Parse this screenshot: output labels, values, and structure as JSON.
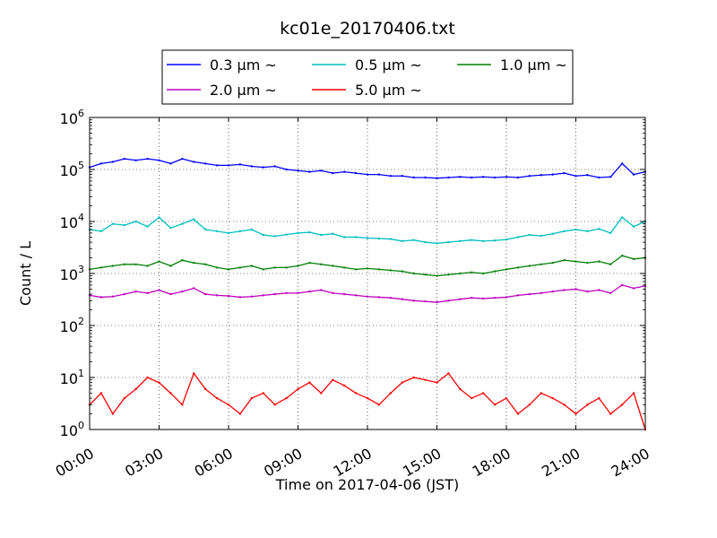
{
  "chart_data": {
    "type": "line",
    "title": "kc01e_20170406.txt",
    "xlabel": "Time on 2017-04-06 (JST)",
    "ylabel": "Count / L",
    "yscale": "log",
    "ylim": [
      1,
      1000000
    ],
    "xlim": [
      "00:00",
      "24:00"
    ],
    "grid": true,
    "legend_position": "top-center",
    "x_ticks": [
      "00:00",
      "03:00",
      "06:00",
      "09:00",
      "12:00",
      "15:00",
      "18:00",
      "21:00",
      "24:00"
    ],
    "y_ticks": [
      "10^0",
      "10^1",
      "10^2",
      "10^3",
      "10^4",
      "10^5",
      "10^6"
    ],
    "x": [
      "00:00",
      "00:30",
      "01:00",
      "01:30",
      "02:00",
      "02:30",
      "03:00",
      "03:30",
      "04:00",
      "04:30",
      "05:00",
      "05:30",
      "06:00",
      "06:30",
      "07:00",
      "07:30",
      "08:00",
      "08:30",
      "09:00",
      "09:30",
      "10:00",
      "10:30",
      "11:00",
      "11:30",
      "12:00",
      "12:30",
      "13:00",
      "13:30",
      "14:00",
      "14:30",
      "15:00",
      "15:30",
      "16:00",
      "16:30",
      "17:00",
      "17:30",
      "18:00",
      "18:30",
      "19:00",
      "19:30",
      "20:00",
      "20:30",
      "21:00",
      "21:30",
      "22:00",
      "22:30",
      "23:00",
      "23:30",
      "24:00"
    ],
    "series": [
      {
        "name": "0.3 μm ~",
        "color": "#0000ff",
        "values": [
          110000,
          130000,
          140000,
          160000,
          150000,
          160000,
          150000,
          130000,
          160000,
          140000,
          130000,
          120000,
          120000,
          125000,
          115000,
          110000,
          115000,
          100000,
          95000,
          90000,
          95000,
          85000,
          90000,
          85000,
          80000,
          80000,
          75000,
          75000,
          70000,
          70000,
          68000,
          70000,
          72000,
          70000,
          72000,
          70000,
          72000,
          70000,
          75000,
          78000,
          80000,
          85000,
          75000,
          78000,
          70000,
          72000,
          130000,
          80000,
          90000
        ]
      },
      {
        "name": "0.5 μm ~",
        "color": "#00bfbf",
        "values": [
          7000,
          6500,
          9000,
          8500,
          10000,
          8000,
          12000,
          7500,
          9000,
          11000,
          7000,
          6500,
          6000,
          6500,
          7000,
          5500,
          5200,
          5600,
          6000,
          6200,
          5500,
          5800,
          5000,
          5000,
          4800,
          4700,
          4600,
          4200,
          4400,
          4000,
          3800,
          4000,
          4200,
          4400,
          4200,
          4300,
          4500,
          5000,
          5500,
          5300,
          5800,
          6500,
          7000,
          6500,
          7200,
          6000,
          12000,
          8000,
          10000
        ]
      },
      {
        "name": "1.0 μm ~",
        "color": "#008000",
        "values": [
          1200,
          1300,
          1400,
          1500,
          1500,
          1400,
          1700,
          1400,
          1800,
          1600,
          1500,
          1300,
          1200,
          1300,
          1400,
          1200,
          1300,
          1300,
          1400,
          1600,
          1500,
          1400,
          1300,
          1200,
          1250,
          1200,
          1150,
          1100,
          1000,
          950,
          900,
          950,
          1000,
          1050,
          1000,
          1100,
          1200,
          1300,
          1400,
          1500,
          1600,
          1800,
          1700,
          1600,
          1700,
          1500,
          2200,
          1900,
          2000
        ]
      },
      {
        "name": "2.0 μm ~",
        "color": "#bf00bf",
        "values": [
          380,
          350,
          360,
          400,
          450,
          420,
          480,
          400,
          450,
          520,
          400,
          380,
          370,
          350,
          360,
          380,
          400,
          420,
          420,
          450,
          480,
          420,
          400,
          380,
          360,
          350,
          340,
          320,
          300,
          290,
          280,
          300,
          320,
          340,
          330,
          340,
          350,
          380,
          400,
          420,
          450,
          480,
          500,
          450,
          480,
          420,
          600,
          520,
          580
        ]
      },
      {
        "name": "5.0 μm ~",
        "color": "#ff0000",
        "values": [
          3,
          5,
          2,
          4,
          6,
          10,
          8,
          5,
          3,
          12,
          6,
          4,
          3,
          2,
          4,
          5,
          3,
          4,
          6,
          8,
          5,
          9,
          7,
          5,
          4,
          3,
          5,
          8,
          10,
          9,
          8,
          12,
          6,
          4,
          5,
          3,
          4,
          2,
          3,
          5,
          4,
          3,
          2,
          3,
          4,
          2,
          3,
          5,
          1
        ]
      }
    ]
  }
}
